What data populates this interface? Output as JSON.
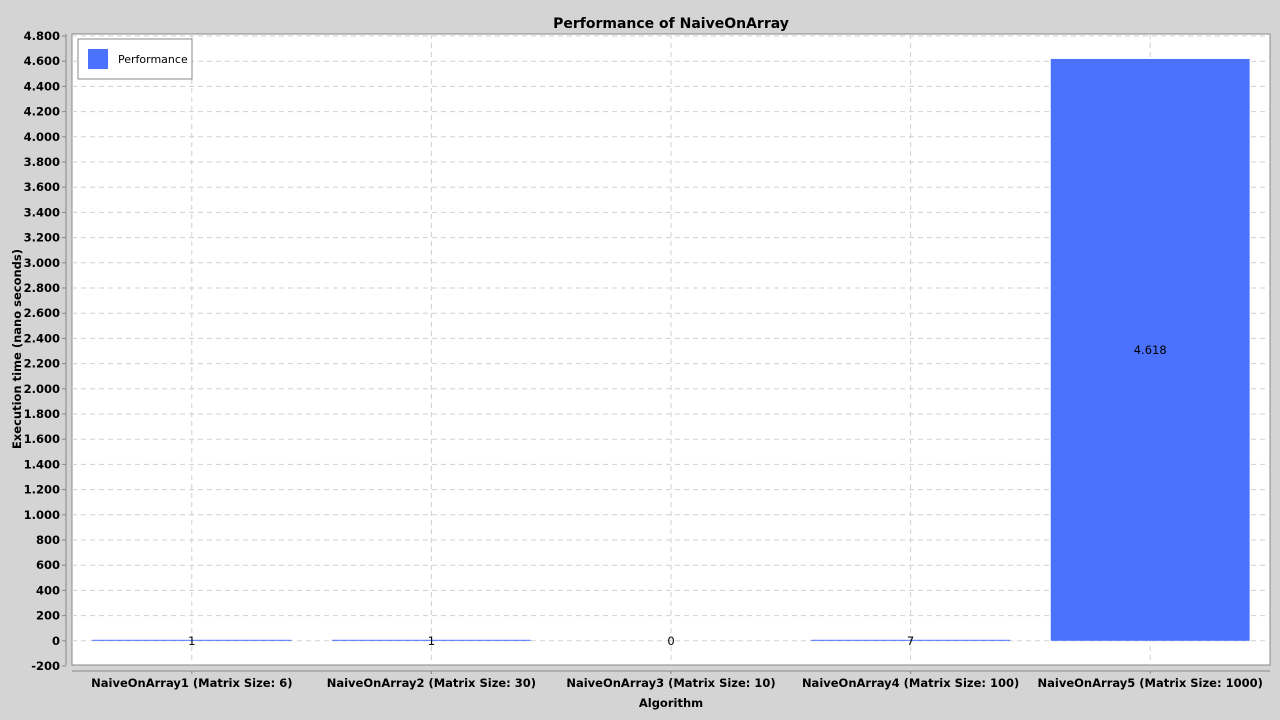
{
  "chart_data": {
    "type": "bar",
    "title": "Performance of NaiveOnArray",
    "xlabel": "Algorithm",
    "ylabel": "Execution time (nano seconds)",
    "categories": [
      "NaiveOnArray1 (Matrix Size: 6)",
      "NaiveOnArray2 (Matrix Size: 30)",
      "NaiveOnArray3 (Matrix Size: 10)",
      "NaiveOnArray4 (Matrix Size: 100)",
      "NaiveOnArray5 (Matrix Size: 1000)"
    ],
    "series": [
      {
        "name": "Performance",
        "values": [
          1,
          1,
          0,
          7,
          4618
        ]
      }
    ],
    "data_labels": [
      "1",
      "1",
      "0",
      "7",
      "4.618"
    ],
    "ylim": [
      -200,
      4800
    ],
    "yticks": [
      -200,
      0,
      200,
      400,
      600,
      800,
      1000,
      1200,
      1400,
      1600,
      1800,
      2000,
      2200,
      2400,
      2600,
      2800,
      3000,
      3200,
      3400,
      3600,
      3800,
      4000,
      4200,
      4400,
      4600,
      4800
    ],
    "ytick_labels": [
      "-200",
      "0",
      "200",
      "400",
      "600",
      "800",
      "1.000",
      "1.200",
      "1.400",
      "1.600",
      "1.800",
      "2.000",
      "2.200",
      "2.400",
      "2.600",
      "2.800",
      "3.000",
      "3.200",
      "3.400",
      "3.600",
      "3.800",
      "4.000",
      "4.200",
      "4.400",
      "4.600",
      "4.800"
    ],
    "grid": true,
    "legend_position": "top-left",
    "colors": {
      "bar": "#4a72ff",
      "background": "#d4d4d4",
      "plot_background": "#ffffff",
      "grid": "#d0d0d0"
    }
  }
}
